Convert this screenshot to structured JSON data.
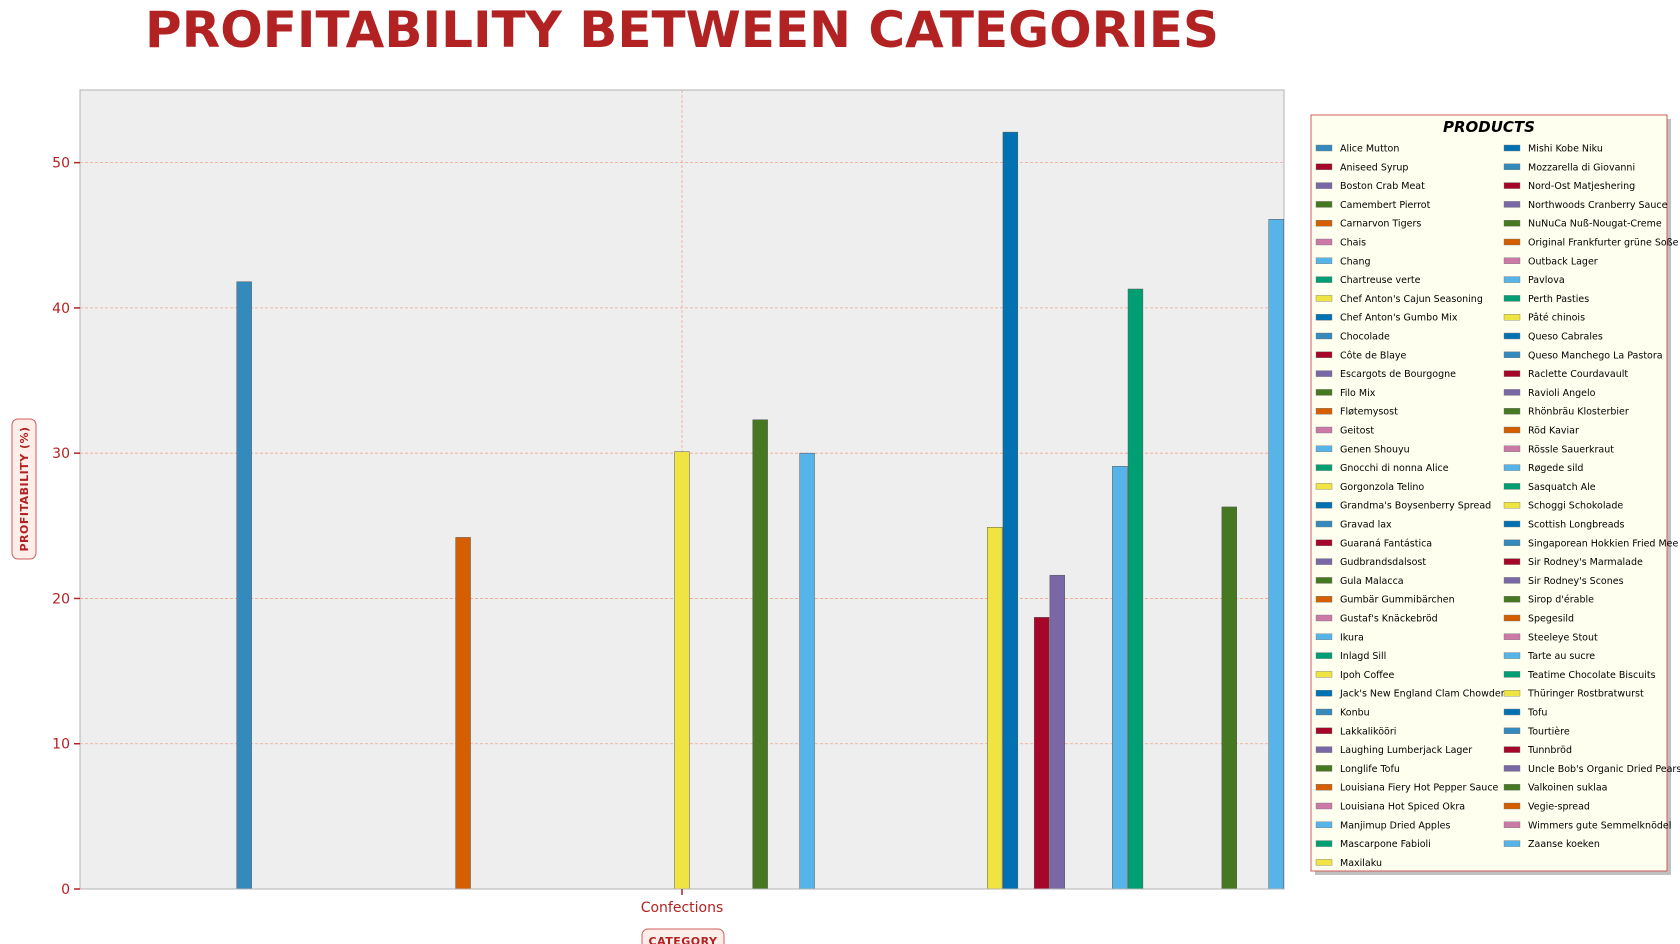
{
  "chart_data": {
    "type": "bar",
    "title": "PROFITABILITY BETWEEN CATEGORIES",
    "xlabel": "CATEGORY",
    "ylabel": "PROFITABILITY (%)",
    "categories": [
      "Confections"
    ],
    "ylim": [
      0,
      55
    ],
    "yticks": [
      0,
      10,
      20,
      30,
      40,
      50
    ],
    "grid": true,
    "legend_title": "PRODUCTS",
    "legend_position": "right",
    "palette": [
      "#348abd",
      "#a60628",
      "#7a68a6",
      "#467821",
      "#d55e00",
      "#cc79a7",
      "#56b4e9",
      "#009e73",
      "#f0e442",
      "#0072b2"
    ],
    "series": [
      {
        "name": "Alice Mutton",
        "value": null
      },
      {
        "name": "Aniseed Syrup",
        "value": null
      },
      {
        "name": "Boston Crab Meat",
        "value": null
      },
      {
        "name": "Camembert Pierrot",
        "value": null
      },
      {
        "name": "Carnarvon Tigers",
        "value": null
      },
      {
        "name": "Chais",
        "value": null
      },
      {
        "name": "Chang",
        "value": null
      },
      {
        "name": "Chartreuse verte",
        "value": null
      },
      {
        "name": "Chef Anton's Cajun Seasoning",
        "value": null
      },
      {
        "name": "Chef Anton's Gumbo Mix",
        "value": null
      },
      {
        "name": "Chocolade",
        "value": 41.8
      },
      {
        "name": "Côte de Blaye",
        "value": null
      },
      {
        "name": "Escargots de Bourgogne",
        "value": null
      },
      {
        "name": "Filo Mix",
        "value": null
      },
      {
        "name": "Fløtemysost",
        "value": null
      },
      {
        "name": "Geitost",
        "value": null
      },
      {
        "name": "Genen Shouyu",
        "value": null
      },
      {
        "name": "Gnocchi di nonna Alice",
        "value": null
      },
      {
        "name": "Gorgonzola Telino",
        "value": null
      },
      {
        "name": "Grandma's Boysenberry Spread",
        "value": null
      },
      {
        "name": "Gravad lax",
        "value": null
      },
      {
        "name": "Guaraná Fantástica",
        "value": null
      },
      {
        "name": "Gudbrandsdalsost",
        "value": null
      },
      {
        "name": "Gula Malacca",
        "value": null
      },
      {
        "name": "Gumbär Gummibärchen",
        "value": 24.2
      },
      {
        "name": "Gustaf's Knäckebröd",
        "value": null
      },
      {
        "name": "Ikura",
        "value": null
      },
      {
        "name": "Inlagd Sill",
        "value": null
      },
      {
        "name": "Ipoh Coffee",
        "value": null
      },
      {
        "name": "Jack's New England Clam Chowder",
        "value": null
      },
      {
        "name": "Konbu",
        "value": null
      },
      {
        "name": "Lakkalikööri",
        "value": null
      },
      {
        "name": "Laughing Lumberjack Lager",
        "value": null
      },
      {
        "name": "Longlife Tofu",
        "value": null
      },
      {
        "name": "Louisiana Fiery Hot Pepper Sauce",
        "value": null
      },
      {
        "name": "Louisiana Hot Spiced Okra",
        "value": null
      },
      {
        "name": "Manjimup Dried Apples",
        "value": null
      },
      {
        "name": "Mascarpone Fabioli",
        "value": null
      },
      {
        "name": "Maxilaku",
        "value": 30.1
      },
      {
        "name": "Mishi Kobe Niku",
        "value": null
      },
      {
        "name": "Mozzarella di Giovanni",
        "value": null
      },
      {
        "name": "Nord-Ost Matjeshering",
        "value": null
      },
      {
        "name": "Northwoods Cranberry Sauce",
        "value": null
      },
      {
        "name": "NuNuCa Nuß-Nougat-Creme",
        "value": 32.3
      },
      {
        "name": "Original Frankfurter grüne Soße",
        "value": null
      },
      {
        "name": "Outback Lager",
        "value": null
      },
      {
        "name": "Pavlova",
        "value": 30.0
      },
      {
        "name": "Perth Pasties",
        "value": null
      },
      {
        "name": "Pâté chinois",
        "value": null
      },
      {
        "name": "Queso Cabrales",
        "value": null
      },
      {
        "name": "Queso Manchego La Pastora",
        "value": null
      },
      {
        "name": "Raclette Courdavault",
        "value": null
      },
      {
        "name": "Ravioli Angelo",
        "value": null
      },
      {
        "name": "Rhönbräu Klosterbier",
        "value": null
      },
      {
        "name": "Röd Kaviar",
        "value": null
      },
      {
        "name": "Rössle Sauerkraut",
        "value": null
      },
      {
        "name": "Røgede sild",
        "value": null
      },
      {
        "name": "Sasquatch Ale",
        "value": null
      },
      {
        "name": "Schoggi Schokolade",
        "value": 24.9
      },
      {
        "name": "Scottish Longbreads",
        "value": 52.1
      },
      {
        "name": "Singaporean Hokkien Fried Mee",
        "value": null
      },
      {
        "name": "Sir Rodney's Marmalade",
        "value": 18.7
      },
      {
        "name": "Sir Rodney's Scones",
        "value": 21.6
      },
      {
        "name": "Sirop d'érable",
        "value": null
      },
      {
        "name": "Spegesild",
        "value": null
      },
      {
        "name": "Steeleye Stout",
        "value": null
      },
      {
        "name": "Tarte au sucre",
        "value": 29.1
      },
      {
        "name": "Teatime Chocolate Biscuits",
        "value": 41.3
      },
      {
        "name": "Thüringer Rostbratwurst",
        "value": null
      },
      {
        "name": "Tofu",
        "value": null
      },
      {
        "name": "Tourtière",
        "value": null
      },
      {
        "name": "Tunnbröd",
        "value": null
      },
      {
        "name": "Uncle Bob's Organic Dried Pears",
        "value": null
      },
      {
        "name": "Valkoinen suklaa",
        "value": 26.3
      },
      {
        "name": "Vegie-spread",
        "value": null
      },
      {
        "name": "Wimmers gute Semmelknödel",
        "value": null
      },
      {
        "name": "Zaanse koeken",
        "value": 46.1
      }
    ]
  }
}
